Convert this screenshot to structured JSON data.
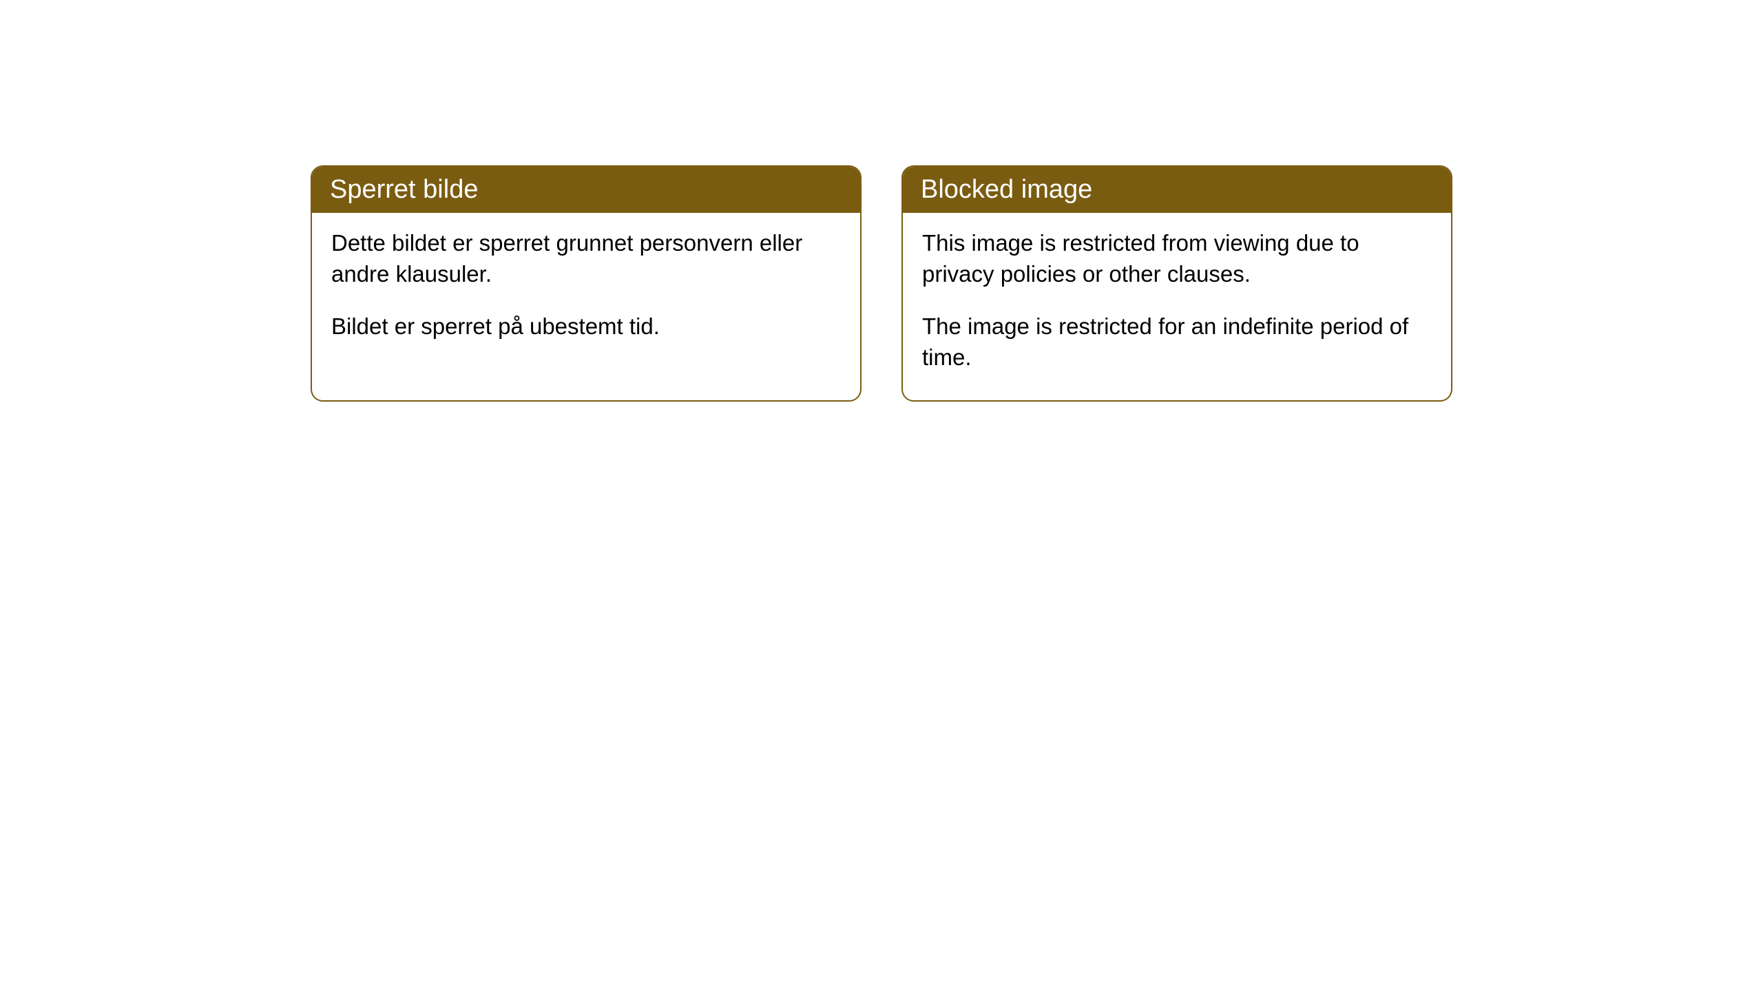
{
  "notices": {
    "norwegian": {
      "header": "Sperret bilde",
      "paragraph1": "Dette bildet er sperret grunnet personvern eller andre klausuler.",
      "paragraph2": "Bildet er sperret på ubestemt tid."
    },
    "english": {
      "header": "Blocked image",
      "paragraph1": "This image is restricted from viewing due to privacy policies or other clauses.",
      "paragraph2": "The image is restricted for an indefinite period of time."
    }
  },
  "styling": {
    "header_bg_color": "#7a5c11",
    "header_text_color": "#ffffff",
    "border_color": "#7b5d13",
    "body_bg_color": "#ffffff",
    "body_text_color": "#000000",
    "border_radius": 18,
    "header_fontsize": 38,
    "body_fontsize": 33
  }
}
